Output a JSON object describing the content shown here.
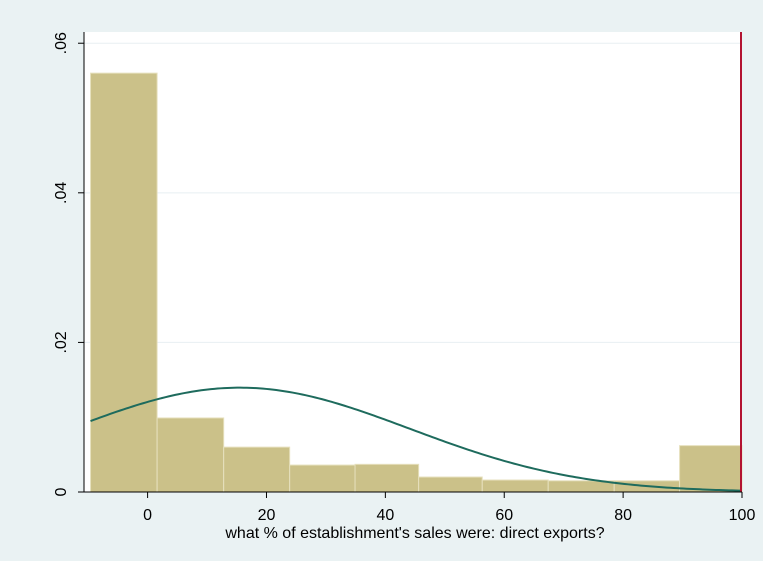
{
  "chart_data": {
    "type": "bar",
    "xlabel": "what % of establishment's sales were: direct exports?",
    "ylabel": "",
    "xlim": [
      -10.7,
      100
    ],
    "ylim": [
      0,
      0.0615
    ],
    "x_ticks": [
      {
        "value": 0,
        "label": "0"
      },
      {
        "value": 20,
        "label": "20"
      },
      {
        "value": 40,
        "label": "40"
      },
      {
        "value": 60,
        "label": "60"
      },
      {
        "value": 80,
        "label": "80"
      },
      {
        "value": 100,
        "label": "100"
      }
    ],
    "y_ticks": [
      {
        "value": 0,
        "label": "0"
      },
      {
        "value": 0.02,
        "label": ".02"
      },
      {
        "value": 0.04,
        "label": ".04"
      },
      {
        "value": 0.06,
        "label": ".06"
      }
    ],
    "bins": [
      {
        "x0": -9.6,
        "x1": 1.6,
        "density": 0.056
      },
      {
        "x0": 1.6,
        "x1": 12.8,
        "density": 0.0099
      },
      {
        "x0": 12.8,
        "x1": 23.9,
        "density": 0.006
      },
      {
        "x0": 23.9,
        "x1": 34.9,
        "density": 0.0036
      },
      {
        "x0": 34.9,
        "x1": 45.6,
        "density": 0.0037
      },
      {
        "x0": 45.6,
        "x1": 56.3,
        "density": 0.002
      },
      {
        "x0": 56.3,
        "x1": 67.4,
        "density": 0.0016
      },
      {
        "x0": 67.4,
        "x1": 78.5,
        "density": 0.0015
      },
      {
        "x0": 78.5,
        "x1": 89.5,
        "density": 0.0015
      },
      {
        "x0": 89.5,
        "x1": 100,
        "density": 0.0062
      }
    ],
    "normal_curve": {
      "mean": 15.5,
      "sd": 28.6
    },
    "reference_line": {
      "x": 100
    },
    "grid": true,
    "colors": {
      "outer_background": "#eaf2f3",
      "plot_background": "#ffffff",
      "bar_fill": "#cbc189",
      "bar_edge": "#e6e0bd",
      "normal_curve": "#1e6b5d",
      "reference_line": "#b31331",
      "grid": "#e8eff2",
      "axis": "#000000"
    }
  }
}
